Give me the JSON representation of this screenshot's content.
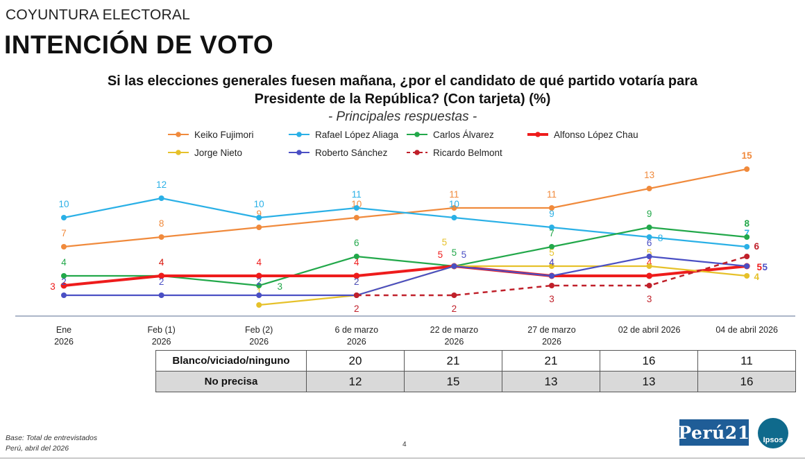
{
  "kicker": "COYUNTURA ELECTORAL",
  "title": "INTENCIÓN DE VOTO",
  "question_line1": "Si las elecciones generales fuesen mañana, ¿por el candidato de qué partido votaría para",
  "question_line2": "Presidente de la República? (Con tarjeta) (%)",
  "subtitle": "- Principales respuestas -",
  "chart_data": {
    "type": "line",
    "x": [
      {
        "l1": "Ene",
        "l2": "2026"
      },
      {
        "l1": "Feb (1)",
        "l2": "2026"
      },
      {
        "l1": "Feb (2)",
        "l2": "2026"
      },
      {
        "l1": "6 de marzo",
        "l2": "2026"
      },
      {
        "l1": "22 de marzo",
        "l2": "2026"
      },
      {
        "l1": "27 de marzo",
        "l2": "2026"
      },
      {
        "l1": "02 de abril 2026",
        "l2": ""
      },
      {
        "l1": "04 de abril 2026",
        "l2": ""
      }
    ],
    "ylim": [
      0,
      16
    ],
    "series": [
      {
        "name": "Keiko Fujimori",
        "color": "#f08a3c",
        "dash": false,
        "thick": false,
        "values": [
          7,
          8,
          9,
          10,
          11,
          11,
          13,
          15
        ]
      },
      {
        "name": "Rafael López Aliaga",
        "color": "#2ab0e6",
        "dash": false,
        "thick": false,
        "values": [
          10,
          12,
          10,
          11,
          10,
          9,
          8,
          7
        ]
      },
      {
        "name": "Carlos Álvarez",
        "color": "#22a84a",
        "dash": false,
        "thick": false,
        "values": [
          4,
          4,
          3,
          6,
          5,
          7,
          9,
          8
        ]
      },
      {
        "name": "Alfonso López Chau",
        "color": "#ee1c1c",
        "dash": false,
        "thick": true,
        "values": [
          3,
          4,
          4,
          4,
          5,
          4,
          4,
          5
        ]
      },
      {
        "name": "Jorge Nieto",
        "color": "#e6c12a",
        "dash": false,
        "thick": false,
        "values": [
          null,
          null,
          1,
          2,
          5,
          5,
          5,
          4
        ]
      },
      {
        "name": "Roberto Sánchez",
        "color": "#4a4fc4",
        "dash": false,
        "thick": false,
        "values": [
          2,
          2,
          2,
          2,
          5,
          4,
          6,
          5
        ]
      },
      {
        "name": "Ricardo Belmont",
        "color": "#c0202a",
        "dash": true,
        "thick": false,
        "values": [
          null,
          null,
          null,
          2,
          2,
          3,
          3,
          6
        ]
      }
    ]
  },
  "table": {
    "rows": [
      {
        "label": "Blanco/viciado/ninguno",
        "values": [
          "20",
          "21",
          "21",
          "16",
          "11"
        ]
      },
      {
        "label": "No precisa",
        "values": [
          "12",
          "15",
          "13",
          "13",
          "16"
        ]
      }
    ]
  },
  "footer_line1": "Base: Total de entrevistados",
  "footer_line2": "Perú, abril del 2026",
  "page_number": "4",
  "logo_peru21": "Perú21",
  "logo_ipsos": "Ipsos"
}
